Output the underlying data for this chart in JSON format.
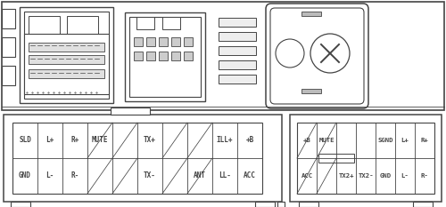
{
  "line_color": "#444444",
  "connector1_top_labels": [
    "SLD",
    "L+",
    "R+",
    "MUTE",
    "",
    "TX+",
    "",
    "",
    "ILL+",
    "+B"
  ],
  "connector1_bot_labels": [
    "GND",
    "L-",
    "R-",
    "",
    "",
    "TX-",
    "",
    "ANT",
    "LL-",
    "ACC"
  ],
  "connector1_diag_cols": [
    3,
    4,
    6,
    7
  ],
  "connector2_top_labels": [
    "+B",
    "MUTE",
    "",
    "",
    "SGND",
    "L+",
    "R+"
  ],
  "connector2_bot_labels": [
    "ACC",
    "",
    "TX2+",
    "TX2-",
    "GND",
    "L-",
    "R-"
  ],
  "connector2_diag_cols": [
    0,
    1
  ]
}
